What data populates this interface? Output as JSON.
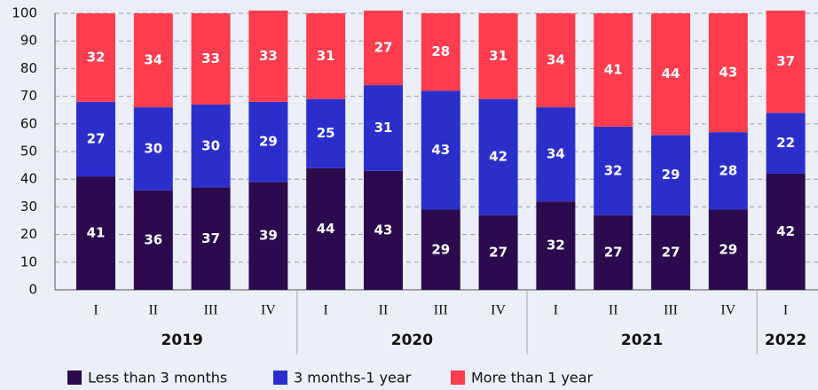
{
  "chart_data": {
    "type": "stacked_bar",
    "groups": [
      {
        "name": "2019",
        "categories": [
          "I",
          "II",
          "III",
          "IV"
        ]
      },
      {
        "name": "2020",
        "categories": [
          "I",
          "II",
          "III",
          "IV"
        ]
      },
      {
        "name": "2021",
        "categories": [
          "I",
          "II",
          "III",
          "IV"
        ]
      },
      {
        "name": "2022",
        "categories": [
          "I"
        ]
      }
    ],
    "series": [
      {
        "name": "Less than 3 months",
        "color": "#2b0a4d",
        "values": [
          41,
          36,
          37,
          39,
          44,
          43,
          29,
          27,
          32,
          27,
          27,
          29,
          42
        ]
      },
      {
        "name": "3 months-1 year",
        "color": "#2a2fcc",
        "values": [
          27,
          30,
          30,
          29,
          25,
          31,
          43,
          42,
          34,
          32,
          29,
          28,
          22
        ]
      },
      {
        "name": "More than 1 year",
        "color": "#ff3d4f",
        "values": [
          32,
          34,
          33,
          33,
          31,
          27,
          28,
          31,
          34,
          41,
          44,
          43,
          37
        ]
      }
    ],
    "ylim": [
      0,
      100
    ],
    "yticks": [
      0,
      10,
      20,
      30,
      40,
      50,
      60,
      70,
      80,
      90,
      100
    ],
    "grid": true
  }
}
